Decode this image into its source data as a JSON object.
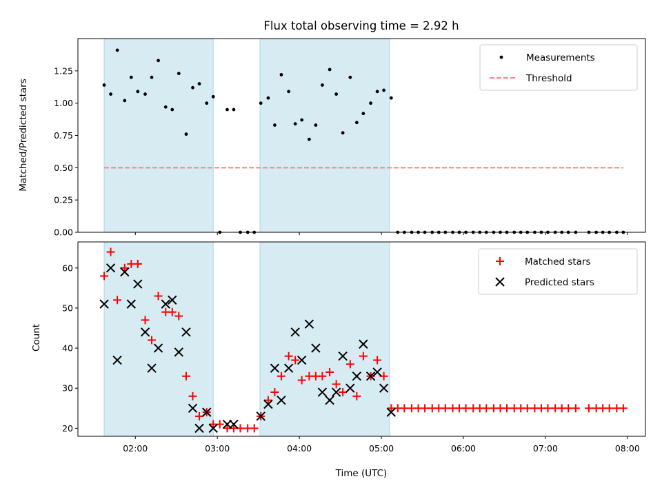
{
  "colors": {
    "band": "#add8e6",
    "measurement": "#000000",
    "threshold": "#ff7f7f",
    "matched": "#ff0000",
    "predicted": "#000000",
    "axes": "#000000",
    "legend_border": "#cccccc"
  },
  "chart_data": [
    {
      "type": "scatter",
      "title": "Flux total observing time = 2.92 h",
      "xlabel": "",
      "ylabel": "Matched/Predicted stars",
      "x_unit": "hours UTC",
      "xlim": [
        1.3,
        8.22
      ],
      "ylim": [
        0.0,
        1.5
      ],
      "yticks": [
        0.0,
        0.25,
        0.5,
        0.75,
        1.0,
        1.25
      ],
      "ytick_labels": [
        "0.00",
        "0.25",
        "0.50",
        "0.75",
        "1.00",
        "1.25"
      ],
      "grid": false,
      "legend_position": "top-right",
      "observing_intervals": [
        [
          1.62,
          2.95
        ],
        [
          3.52,
          5.1
        ]
      ],
      "series": [
        {
          "name": "Measurements",
          "marker": "dot",
          "x": [
            1.62,
            1.7,
            1.78,
            1.87,
            1.95,
            2.03,
            2.12,
            2.2,
            2.28,
            2.37,
            2.45,
            2.53,
            2.62,
            2.7,
            2.78,
            2.87,
            2.95,
            3.03,
            3.12,
            3.2,
            3.28,
            3.37,
            3.45,
            3.53,
            3.62,
            3.7,
            3.78,
            3.87,
            3.95,
            4.03,
            4.12,
            4.2,
            4.28,
            4.37,
            4.45,
            4.53,
            4.62,
            4.7,
            4.78,
            4.87,
            4.95,
            5.03,
            5.12,
            5.2,
            5.28,
            5.37,
            5.45,
            5.53,
            5.62,
            5.7,
            5.78,
            5.87,
            5.95,
            6.03,
            6.12,
            6.2,
            6.28,
            6.37,
            6.45,
            6.53,
            6.62,
            6.7,
            6.78,
            6.87,
            6.95,
            7.03,
            7.12,
            7.2,
            7.28,
            7.37,
            7.53,
            7.62,
            7.7,
            7.78,
            7.87,
            7.95
          ],
          "y": [
            1.14,
            1.07,
            1.41,
            1.02,
            1.2,
            1.09,
            1.07,
            1.2,
            1.33,
            0.97,
            0.95,
            1.23,
            0.76,
            1.12,
            1.15,
            1.0,
            1.05,
            0.0,
            0.95,
            0.95,
            0.0,
            0.0,
            0.0,
            1.0,
            1.04,
            0.83,
            1.22,
            1.09,
            0.84,
            0.87,
            0.72,
            0.83,
            1.14,
            1.26,
            1.07,
            0.77,
            1.2,
            0.85,
            0.92,
            1.0,
            1.09,
            1.1,
            1.04,
            0.0,
            0.0,
            0.0,
            0.0,
            0.0,
            0.0,
            0.0,
            0.0,
            0.0,
            0.0,
            0.0,
            0.0,
            0.0,
            0.0,
            0.0,
            0.0,
            0.0,
            0.0,
            0.0,
            0.0,
            0.0,
            0.0,
            0.0,
            0.0,
            0.0,
            0.0,
            0.0,
            0.0,
            0.0,
            0.0,
            0.0,
            0.0,
            0.0
          ]
        },
        {
          "name": "Threshold",
          "marker": "dashed-line",
          "x": [
            1.62,
            7.95
          ],
          "y": [
            0.5,
            0.5
          ]
        }
      ]
    },
    {
      "type": "scatter",
      "title": "",
      "xlabel": "Time (UTC)",
      "ylabel": "Count",
      "x_unit": "hours UTC",
      "xlim": [
        1.3,
        8.22
      ],
      "ylim": [
        18,
        66.5
      ],
      "yticks": [
        20,
        30,
        40,
        50,
        60
      ],
      "ytick_labels": [
        "20",
        "30",
        "40",
        "50",
        "60"
      ],
      "xticks": [
        2,
        3,
        4,
        5,
        6,
        7,
        8
      ],
      "xtick_labels": [
        "02:00",
        "03:00",
        "04:00",
        "05:00",
        "06:00",
        "07:00",
        "08:00"
      ],
      "grid": false,
      "legend_position": "top-right",
      "observing_intervals": [
        [
          1.62,
          2.95
        ],
        [
          3.52,
          5.1
        ]
      ],
      "series": [
        {
          "name": "Matched stars",
          "marker": "plus",
          "x": [
            1.62,
            1.7,
            1.78,
            1.87,
            1.95,
            2.03,
            2.12,
            2.2,
            2.28,
            2.37,
            2.45,
            2.53,
            2.62,
            2.7,
            2.78,
            2.87,
            2.95,
            3.03,
            3.12,
            3.2,
            3.28,
            3.37,
            3.45,
            3.53,
            3.62,
            3.7,
            3.78,
            3.87,
            3.95,
            4.03,
            4.12,
            4.2,
            4.28,
            4.37,
            4.45,
            4.53,
            4.62,
            4.7,
            4.78,
            4.87,
            4.95,
            5.03,
            5.12,
            5.2,
            5.28,
            5.37,
            5.45,
            5.53,
            5.62,
            5.7,
            5.78,
            5.87,
            5.95,
            6.03,
            6.12,
            6.2,
            6.28,
            6.37,
            6.45,
            6.53,
            6.62,
            6.7,
            6.78,
            6.87,
            6.95,
            7.03,
            7.12,
            7.2,
            7.28,
            7.37,
            7.53,
            7.62,
            7.7,
            7.78,
            7.87,
            7.95
          ],
          "y": [
            58,
            64,
            52,
            60,
            61,
            61,
            47,
            42,
            53,
            49,
            49,
            48,
            33,
            28,
            23,
            24,
            21,
            21,
            20,
            20,
            20,
            20,
            20,
            23,
            27,
            29,
            33,
            38,
            37,
            32,
            33,
            33,
            33,
            34,
            31,
            29,
            36,
            28,
            38,
            33,
            37,
            33,
            25,
            25,
            25,
            25,
            25,
            25,
            25,
            25,
            25,
            25,
            25,
            25,
            25,
            25,
            25,
            25,
            25,
            25,
            25,
            25,
            25,
            25,
            25,
            25,
            25,
            25,
            25,
            25,
            25,
            25,
            25,
            25,
            25,
            25
          ]
        },
        {
          "name": "Predicted stars",
          "marker": "x",
          "x": [
            1.62,
            1.7,
            1.78,
            1.87,
            1.95,
            2.03,
            2.12,
            2.2,
            2.28,
            2.37,
            2.45,
            2.53,
            2.62,
            2.7,
            2.78,
            2.87,
            2.95,
            3.12,
            3.2,
            3.53,
            3.62,
            3.7,
            3.78,
            3.87,
            3.95,
            4.03,
            4.12,
            4.2,
            4.28,
            4.37,
            4.45,
            4.53,
            4.62,
            4.7,
            4.78,
            4.87,
            4.95,
            5.03,
            5.12
          ],
          "y": [
            51,
            60,
            37,
            59,
            51,
            56,
            44,
            35,
            40,
            51,
            52,
            39,
            44,
            25,
            20,
            24,
            20,
            21,
            21,
            23,
            26,
            35,
            27,
            35,
            44,
            37,
            46,
            40,
            29,
            27,
            29,
            38,
            30,
            33,
            41,
            33,
            34,
            30,
            24
          ]
        }
      ]
    }
  ]
}
